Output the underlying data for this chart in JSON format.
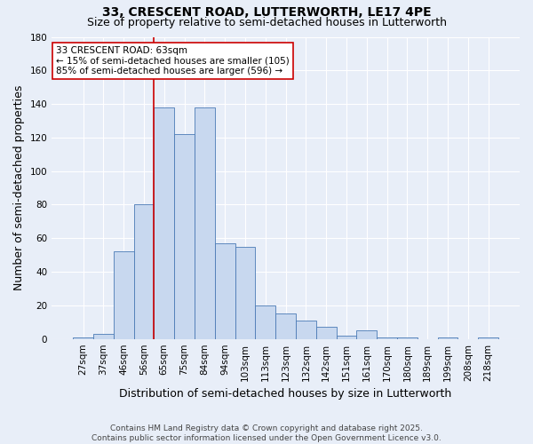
{
  "title": "33, CRESCENT ROAD, LUTTERWORTH, LE17 4PE",
  "subtitle": "Size of property relative to semi-detached houses in Lutterworth",
  "xlabel": "Distribution of semi-detached houses by size in Lutterworth",
  "ylabel": "Number of semi-detached properties",
  "categories": [
    "27sqm",
    "37sqm",
    "46sqm",
    "56sqm",
    "65sqm",
    "75sqm",
    "84sqm",
    "94sqm",
    "103sqm",
    "113sqm",
    "123sqm",
    "132sqm",
    "142sqm",
    "151sqm",
    "161sqm",
    "170sqm",
    "180sqm",
    "189sqm",
    "199sqm",
    "208sqm",
    "218sqm"
  ],
  "values": [
    1,
    3,
    52,
    80,
    138,
    122,
    138,
    57,
    55,
    20,
    15,
    11,
    7,
    2,
    5,
    1,
    1,
    0,
    1,
    0,
    1
  ],
  "bar_color": "#c8d8ef",
  "bar_edge_color": "#4a7ab5",
  "vline_color": "#cc0000",
  "annotation_text": "33 CRESCENT ROAD: 63sqm\n← 15% of semi-detached houses are smaller (105)\n85% of semi-detached houses are larger (596) →",
  "annotation_box_color": "white",
  "annotation_box_edge_color": "#cc0000",
  "ylim": [
    0,
    180
  ],
  "yticks": [
    0,
    20,
    40,
    60,
    80,
    100,
    120,
    140,
    160,
    180
  ],
  "footer": "Contains HM Land Registry data © Crown copyright and database right 2025.\nContains public sector information licensed under the Open Government Licence v3.0.",
  "background_color": "#e8eef8",
  "grid_color": "#ffffff",
  "title_fontsize": 10,
  "subtitle_fontsize": 9,
  "axis_label_fontsize": 9,
  "tick_fontsize": 7.5,
  "footer_fontsize": 6.5,
  "annotation_fontsize": 7.5
}
